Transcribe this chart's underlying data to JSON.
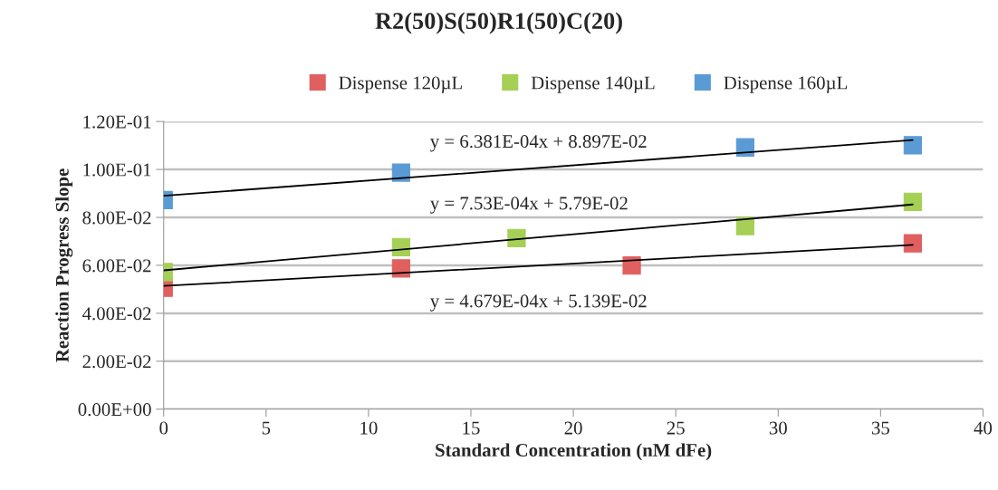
{
  "chart_data": {
    "type": "scatter",
    "title": "R2(50)S(50)R1(50)C(20)",
    "xlabel": "Standard Concentration (nM dFe)",
    "ylabel": "Reaction Progress Slope",
    "series": [
      {
        "name": "Dispense 120µL",
        "color": "#e06060",
        "x": [
          0,
          11.59,
          22.85,
          36.57
        ],
        "values": [
          0.0507,
          0.0587,
          0.0599,
          0.0692
        ]
      },
      {
        "name": "Dispense 140µL",
        "color": "#a6cf55",
        "x": [
          0,
          11.59,
          17.23,
          28.39,
          36.57
        ],
        "values": [
          0.0572,
          0.0676,
          0.0714,
          0.0764,
          0.0865
        ]
      },
      {
        "name": "Dispense 160µL",
        "color": "#5b9bd5",
        "x": [
          0,
          11.59,
          28.39,
          36.57
        ],
        "values": [
          0.0872,
          0.0987,
          0.1092,
          0.1101
        ]
      },
      {
        "type": "line",
        "color": "#000000",
        "marker": "none",
        "x": [
          0,
          36.57
        ],
        "values": [
          0.0514,
          0.0685
        ]
      },
      {
        "type": "line",
        "color": "#000000",
        "marker": "none",
        "x": [
          0,
          36.57
        ],
        "values": [
          0.0579,
          0.0854
        ]
      },
      {
        "type": "line",
        "color": "#000000",
        "marker": "none",
        "x": [
          0,
          36.57
        ],
        "values": [
          0.089,
          0.1123
        ]
      }
    ],
    "annotations": [
      "y = 6.381E-04x + 8.897E-02",
      "y = 7.53E-04x + 5.79E-02",
      "y = 4.679E-04x + 5.139E-02"
    ],
    "xlim": [
      0,
      40
    ],
    "xticks": [
      0,
      5,
      10,
      15,
      20,
      25,
      30,
      35,
      40
    ],
    "ylim": [
      0,
      0.12
    ],
    "yticks": [
      {
        "value": 0,
        "label": "0.00E+00"
      },
      {
        "value": 0.02,
        "label": "2.00E-02"
      },
      {
        "value": 0.04,
        "label": "4.00E-02"
      },
      {
        "value": 0.06,
        "label": "6.00E-02"
      },
      {
        "value": 0.08,
        "label": "8.00E-02"
      },
      {
        "value": 0.1,
        "label": "1.00E-01"
      },
      {
        "value": 0.12,
        "label": "1.20E-01"
      }
    ],
    "grid": "y",
    "legend": "top",
    "marker": "square"
  }
}
